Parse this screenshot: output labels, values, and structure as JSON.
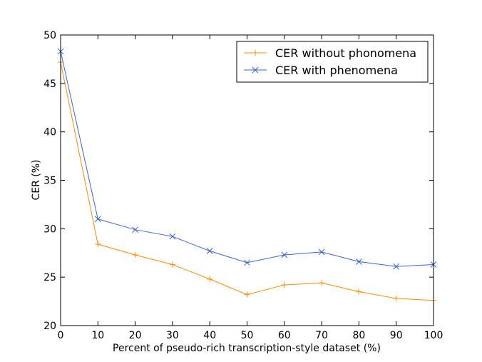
{
  "chart_data": {
    "type": "line",
    "title": "",
    "xlabel": "Percent of pseudo-rich transcription-style dataset (%)",
    "ylabel": "CER (%)",
    "xlim": [
      0,
      100
    ],
    "ylim": [
      20,
      50
    ],
    "x": [
      0,
      10,
      20,
      30,
      40,
      50,
      60,
      70,
      80,
      90,
      100
    ],
    "xticks": [
      0,
      10,
      20,
      30,
      40,
      50,
      60,
      70,
      80,
      90,
      100
    ],
    "yticks": [
      20,
      25,
      30,
      35,
      40,
      45,
      50
    ],
    "grid": false,
    "legend_position": "top-right",
    "series": [
      {
        "name": "CER without phonomena",
        "marker": "+",
        "color": "#ff8c00",
        "values": [
          47.2,
          28.4,
          27.3,
          26.3,
          24.8,
          23.2,
          24.2,
          24.4,
          23.5,
          22.8,
          22.6
        ]
      },
      {
        "name": "CER with phenomena",
        "marker": "x",
        "color": "#3a62d8",
        "values": [
          48.3,
          31.0,
          29.9,
          29.2,
          27.7,
          26.5,
          27.3,
          27.6,
          26.6,
          26.1,
          26.3
        ]
      }
    ]
  }
}
